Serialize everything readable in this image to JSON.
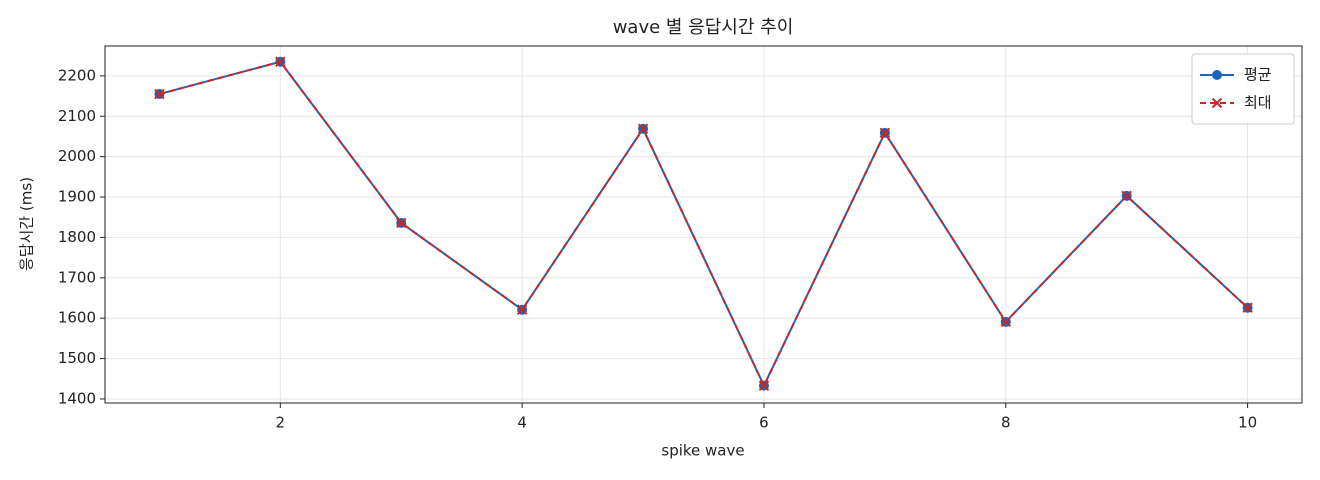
{
  "chart_data": {
    "type": "line",
    "title": "wave 별 응답시간 추이",
    "xlabel": "spike wave",
    "ylabel": "응답시간 (ms)",
    "x": [
      1,
      2,
      3,
      4,
      5,
      6,
      7,
      8,
      9,
      10
    ],
    "series": [
      {
        "name": "평균",
        "color": "#1f63b8",
        "linestyle": "solid",
        "marker": "circle",
        "values": [
          2155,
          2235,
          1836,
          1621,
          2069,
          1433,
          2059,
          1591,
          1903,
          1626
        ]
      },
      {
        "name": "최대",
        "color": "#c62828",
        "linestyle": "dashed",
        "marker": "x",
        "values": [
          2155,
          2235,
          1836,
          1621,
          2069,
          1433,
          2059,
          1591,
          1903,
          1626
        ]
      }
    ],
    "xlim": [
      0.55,
      10.45
    ],
    "ylim": [
      1390,
      2274
    ],
    "xticks": [
      2,
      4,
      6,
      8,
      10
    ],
    "yticks": [
      1400,
      1500,
      1600,
      1700,
      1800,
      1900,
      2000,
      2100,
      2200
    ],
    "grid": true,
    "legend": "upper right"
  }
}
